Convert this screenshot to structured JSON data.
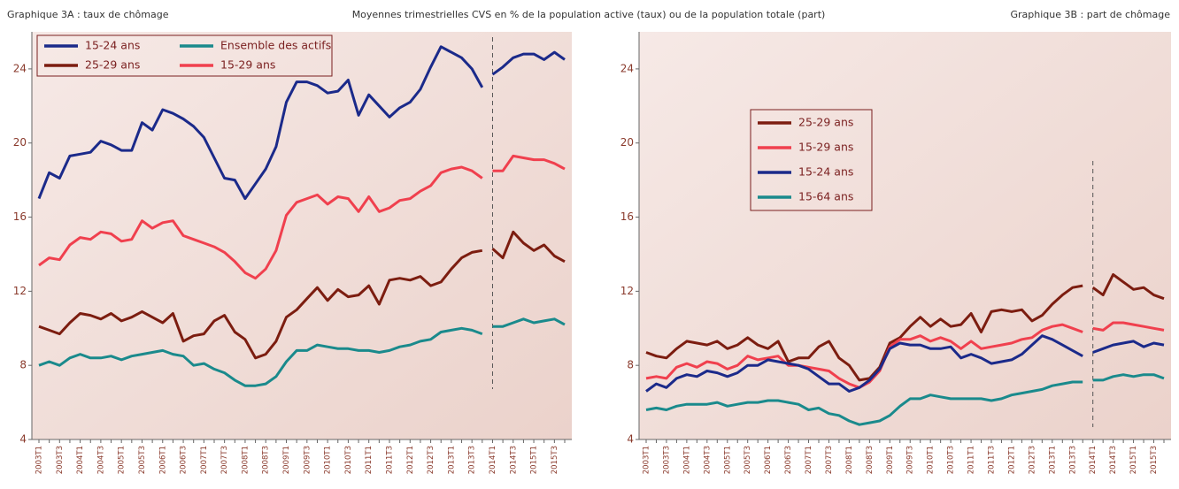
{
  "header": {
    "subtitle": "Moyennes trimestrielles CVS en % de la population active (taux) ou de la population totale (part)"
  },
  "chart_data": [
    {
      "type": "line",
      "title": "Graphique 3A : taux de chômage",
      "legend": "upper left",
      "legend_columns": 2,
      "vline": 44,
      "categories": [
        "2003T1",
        null,
        "2003T3",
        null,
        "2004T1",
        null,
        "2004T3",
        null,
        "2005T1",
        null,
        "2005T3",
        null,
        "2006T1",
        null,
        "2006T3",
        null,
        "2007T1",
        null,
        "2007T3",
        null,
        "2008T1",
        null,
        "2008T3",
        null,
        "2009T1",
        null,
        "2009T3",
        null,
        "2010T1",
        null,
        "2010T3",
        null,
        "2011T1",
        null,
        "2011T3",
        null,
        "2012T1",
        null,
        "2012T3",
        null,
        "2013T1",
        null,
        "2013T3",
        null,
        "2014T1",
        null,
        "2014T3",
        null,
        "2015T1",
        null,
        "2015T3",
        null
      ],
      "ylim": [
        4,
        26
      ],
      "yticks": [
        4,
        8,
        12,
        16,
        20,
        24
      ],
      "series": [
        {
          "name": "15-24 ans",
          "color": "#1b2a8a",
          "values": [
            17.0,
            18.4,
            18.1,
            19.3,
            19.4,
            19.5,
            20.1,
            19.9,
            19.6,
            19.6,
            21.1,
            20.7,
            21.8,
            21.6,
            21.3,
            20.9,
            20.3,
            19.2,
            18.1,
            18.0,
            17.0,
            17.8,
            18.6,
            19.8,
            22.2,
            23.3,
            23.3,
            23.1,
            22.7,
            22.8,
            23.4,
            21.5,
            22.6,
            22.0,
            21.4,
            21.9,
            22.2,
            22.9,
            24.1,
            25.2,
            24.9,
            24.6,
            24.0,
            23.0,
            23.7,
            24.1,
            24.6,
            24.8,
            24.8,
            24.5,
            24.9,
            24.5
          ]
        },
        {
          "name": "25-29 ans",
          "color": "#7c1d10",
          "values": [
            10.1,
            9.9,
            9.7,
            10.3,
            10.8,
            10.7,
            10.5,
            10.8,
            10.4,
            10.6,
            10.9,
            10.6,
            10.3,
            10.8,
            9.3,
            9.6,
            9.7,
            10.4,
            10.7,
            9.8,
            9.4,
            8.4,
            8.6,
            9.3,
            10.6,
            11.0,
            11.6,
            12.2,
            11.5,
            12.1,
            11.7,
            11.8,
            12.3,
            11.3,
            12.6,
            12.7,
            12.6,
            12.8,
            12.3,
            12.5,
            13.2,
            13.8,
            14.1,
            14.2,
            14.3,
            13.8,
            15.2,
            14.6,
            14.2,
            14.5,
            13.9,
            13.6
          ]
        },
        {
          "name": "Ensemble des actifs",
          "color": "#1a8a8c",
          "values": [
            8.0,
            8.2,
            8.0,
            8.4,
            8.6,
            8.4,
            8.4,
            8.5,
            8.3,
            8.5,
            8.6,
            8.7,
            8.8,
            8.6,
            8.5,
            8.0,
            8.1,
            7.8,
            7.6,
            7.2,
            6.9,
            6.9,
            7.0,
            7.4,
            8.2,
            8.8,
            8.8,
            9.1,
            9.0,
            8.9,
            8.9,
            8.8,
            8.8,
            8.7,
            8.8,
            9.0,
            9.1,
            9.3,
            9.4,
            9.8,
            9.9,
            10.0,
            9.9,
            9.7,
            10.1,
            10.1,
            10.3,
            10.5,
            10.3,
            10.4,
            10.5,
            10.2
          ]
        },
        {
          "name": "15-29 ans",
          "color": "#f0404e",
          "values": [
            13.4,
            13.8,
            13.7,
            14.5,
            14.9,
            14.8,
            15.2,
            15.1,
            14.7,
            14.8,
            15.8,
            15.4,
            15.7,
            15.8,
            15.0,
            14.8,
            14.6,
            14.4,
            14.1,
            13.6,
            13.0,
            12.7,
            13.2,
            14.2,
            16.1,
            16.8,
            17.0,
            17.2,
            16.7,
            17.1,
            17.0,
            16.3,
            17.1,
            16.3,
            16.5,
            16.9,
            17.0,
            17.4,
            17.7,
            18.4,
            18.6,
            18.7,
            18.5,
            18.1,
            18.5,
            18.5,
            19.3,
            19.2,
            19.1,
            19.1,
            18.9,
            18.6
          ]
        }
      ]
    },
    {
      "type": "line",
      "title": "Graphique 3B : part de chômage",
      "legend": "center left",
      "legend_columns": 1,
      "vline": 44,
      "categories": [
        "2003T1",
        null,
        "2003T3",
        null,
        "2004T1",
        null,
        "2004T3",
        null,
        "2005T1",
        null,
        "2005T3",
        null,
        "2006T1",
        null,
        "2006T3",
        null,
        "2007T1",
        null,
        "2007T3",
        null,
        "2008T1",
        null,
        "2008T3",
        null,
        "2009T1",
        null,
        "2009T3",
        null,
        "2010T1",
        null,
        "2010T3",
        null,
        "2011T1",
        null,
        "2011T3",
        null,
        "2012T1",
        null,
        "2012T3",
        null,
        "2013T1",
        null,
        "2013T3",
        null,
        "2014T1",
        null,
        "2014T3",
        null,
        "2015T1",
        null,
        "2015T3",
        null
      ],
      "ylim": [
        4,
        26
      ],
      "yticks": [
        4,
        8,
        12,
        16,
        20,
        24
      ],
      "series": [
        {
          "name": "25-29 ans",
          "color": "#7c1d10",
          "values": [
            8.7,
            8.5,
            8.4,
            8.9,
            9.3,
            9.2,
            9.1,
            9.3,
            8.9,
            9.1,
            9.5,
            9.1,
            8.9,
            9.3,
            8.2,
            8.4,
            8.4,
            9.0,
            9.3,
            8.4,
            8.0,
            7.2,
            7.3,
            7.9,
            9.2,
            9.5,
            10.1,
            10.6,
            10.1,
            10.5,
            10.1,
            10.2,
            10.8,
            9.8,
            10.9,
            11.0,
            10.9,
            11.0,
            10.4,
            10.7,
            11.3,
            11.8,
            12.2,
            12.3,
            12.2,
            11.8,
            12.9,
            12.5,
            12.1,
            12.2,
            11.8,
            11.6
          ]
        },
        {
          "name": "15-29 ans",
          "color": "#f0404e",
          "values": [
            7.3,
            7.4,
            7.3,
            7.9,
            8.1,
            7.9,
            8.2,
            8.1,
            7.8,
            8.0,
            8.5,
            8.3,
            8.4,
            8.5,
            8.0,
            8.0,
            7.9,
            7.8,
            7.7,
            7.3,
            7.0,
            6.8,
            7.1,
            7.7,
            9.0,
            9.4,
            9.4,
            9.6,
            9.3,
            9.5,
            9.3,
            8.9,
            9.3,
            8.9,
            9.0,
            9.1,
            9.2,
            9.4,
            9.5,
            9.9,
            10.1,
            10.2,
            10.0,
            9.8,
            10.0,
            9.9,
            10.3,
            10.3,
            10.2,
            10.1,
            10.0,
            9.9
          ]
        },
        {
          "name": "15-24 ans",
          "color": "#1b2a8a",
          "values": [
            6.6,
            7.0,
            6.8,
            7.3,
            7.5,
            7.4,
            7.7,
            7.6,
            7.4,
            7.6,
            8.0,
            8.0,
            8.3,
            8.2,
            8.1,
            8.0,
            7.8,
            7.4,
            7.0,
            7.0,
            6.6,
            6.8,
            7.2,
            7.8,
            8.9,
            9.2,
            9.1,
            9.1,
            8.9,
            8.9,
            9.0,
            8.4,
            8.6,
            8.4,
            8.1,
            8.2,
            8.3,
            8.6,
            9.1,
            9.6,
            9.4,
            9.1,
            8.8,
            8.5,
            8.7,
            8.9,
            9.1,
            9.2,
            9.3,
            9.0,
            9.2,
            9.1
          ]
        },
        {
          "name": "15-64 ans",
          "color": "#1a8a8c",
          "values": [
            5.6,
            5.7,
            5.6,
            5.8,
            5.9,
            5.9,
            5.9,
            6.0,
            5.8,
            5.9,
            6.0,
            6.0,
            6.1,
            6.1,
            6.0,
            5.9,
            5.6,
            5.7,
            5.4,
            5.3,
            5.0,
            4.8,
            4.9,
            5.0,
            5.3,
            5.8,
            6.2,
            6.2,
            6.4,
            6.3,
            6.2,
            6.2,
            6.2,
            6.2,
            6.1,
            6.2,
            6.4,
            6.5,
            6.6,
            6.7,
            6.9,
            7.0,
            7.1,
            7.1,
            7.2,
            7.2,
            7.4,
            7.5,
            7.4,
            7.5,
            7.5,
            7.3
          ]
        }
      ]
    }
  ]
}
